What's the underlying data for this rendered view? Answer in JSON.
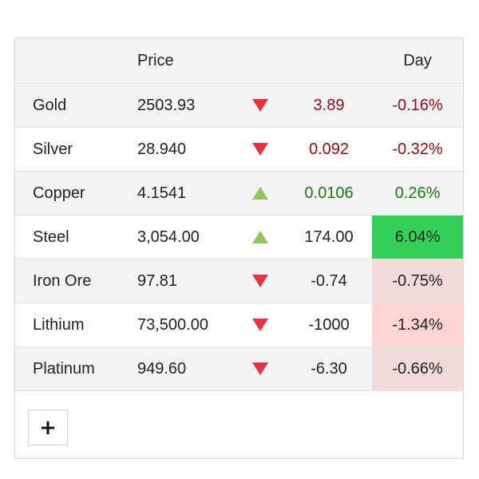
{
  "header": {
    "price_label": "Price",
    "day_label": "Day"
  },
  "rows": [
    {
      "name": "Gold",
      "price": "2503.93",
      "direction": "down",
      "change": "3.89",
      "percent": "-0.16%"
    },
    {
      "name": "Silver",
      "price": "28.940",
      "direction": "down",
      "change": "0.092",
      "percent": "-0.32%"
    },
    {
      "name": "Copper",
      "price": "4.1541",
      "direction": "up",
      "change": "0.0106",
      "percent": "0.26%"
    },
    {
      "name": "Steel",
      "price": "3,054.00",
      "direction": "up",
      "change": "174.00",
      "percent": "6.04%"
    },
    {
      "name": "Iron Ore",
      "price": "97.81",
      "direction": "down",
      "change": "-0.74",
      "percent": "-0.75%"
    },
    {
      "name": "Lithium",
      "price": "73,500.00",
      "direction": "down",
      "change": "-1000",
      "percent": "-1.34%"
    },
    {
      "name": "Platinum",
      "price": "949.60",
      "direction": "down",
      "change": "-6.30",
      "percent": "-0.66%"
    }
  ],
  "add_button": {
    "label": "+"
  },
  "colors": {
    "down_arrow": "#e8343c",
    "up_arrow": "#8cc85a",
    "negative_text": "#8f0d12",
    "positive_text": "#1a7a12",
    "strong_positive_bg": "#33d15a",
    "light_negative_bg": "#ffd4d4",
    "pale_negative_bg": "#f0dada"
  }
}
